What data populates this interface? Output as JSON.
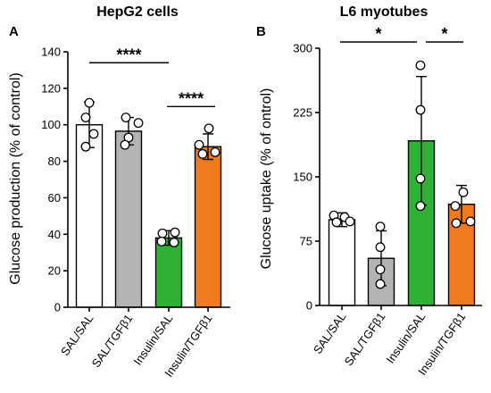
{
  "chart_data": [
    {
      "type": "bar",
      "panel": "A",
      "title": "HepG2 cells",
      "ylabel": "Glucose production (% of control)",
      "ylim": [
        0,
        140
      ],
      "yticks": [
        0,
        20,
        40,
        60,
        80,
        100,
        120,
        140
      ],
      "categories": [
        "SAL/SAL",
        "SAL/TGFβ1",
        "Insulin/SAL",
        "Insulin/TGFβ1"
      ],
      "values": [
        100,
        96.5,
        38,
        88
      ],
      "errors": [
        12.5,
        7.5,
        4,
        7
      ],
      "colors": [
        "#ffffff",
        "#b3b3b6",
        "#2eb135",
        "#f07a1f"
      ],
      "points": [
        [
          112,
          104,
          95,
          88
        ],
        [
          104,
          101,
          93,
          89
        ],
        [
          41,
          40.5,
          36,
          35.5
        ],
        [
          98,
          89,
          85,
          84
        ]
      ],
      "significance": [
        {
          "from": 0,
          "to": 2,
          "label": "****",
          "y": 134
        },
        {
          "from": 2,
          "to": 3,
          "label": "****",
          "y": 110
        }
      ]
    },
    {
      "type": "bar",
      "panel": "B",
      "title": "L6 myotubes",
      "ylabel": "Glucose uptake (% of ontrol)",
      "ylim": [
        0,
        300
      ],
      "yticks": [
        0,
        75,
        150,
        225,
        300
      ],
      "categories": [
        "SAL/SAL",
        "SAL/TGFβ1",
        "Insulin/SAL",
        "Insulin/TGFβ1"
      ],
      "values": [
        100,
        55,
        192,
        118
      ],
      "errors": [
        8,
        32,
        75,
        22
      ],
      "colors": [
        "#ffffff",
        "#b3b3b6",
        "#2eb135",
        "#f07a1f"
      ],
      "points": [
        [
          105,
          103,
          98,
          97
        ],
        [
          92,
          68,
          42,
          25
        ],
        [
          280,
          228,
          148,
          116
        ],
        [
          132,
          116,
          98,
          96
        ]
      ],
      "significance": [
        {
          "from": 0,
          "to": 2,
          "label": "*",
          "y": 300
        },
        {
          "from": 2,
          "to": 3,
          "label": "*",
          "y": 300
        }
      ]
    }
  ]
}
